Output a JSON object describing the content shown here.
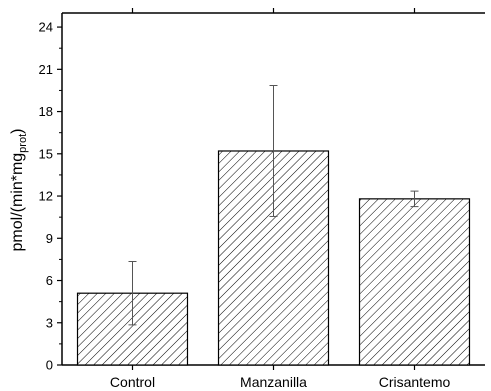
{
  "chart_data": {
    "type": "bar",
    "categories": [
      "Control",
      "Manzanilla",
      "Crisantemo"
    ],
    "values": [
      5.1,
      15.2,
      11.8
    ],
    "errors": [
      2.25,
      4.65,
      0.55
    ],
    "ylabel": "pmol/(min*mg",
    "ylabel_sub": "prot",
    "ylabel_close": ")",
    "ylim": [
      0,
      25
    ],
    "yticks": [
      0,
      3,
      6,
      9,
      12,
      15,
      18,
      21,
      24
    ],
    "bar_fill": "hatched",
    "colors": {
      "stroke": "#000000",
      "hatch": "#000000",
      "error": "#555555",
      "background": "#ffffff"
    },
    "grid": false,
    "legend": "none"
  }
}
